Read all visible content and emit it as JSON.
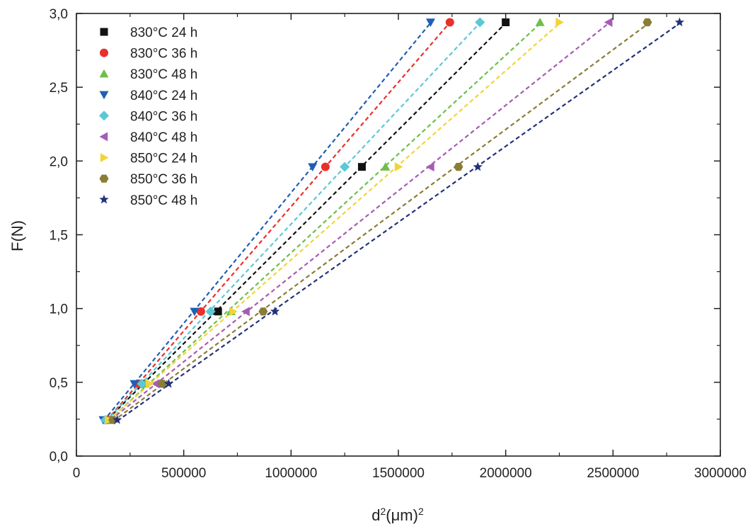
{
  "chart_data": {
    "type": "scatter",
    "title": "",
    "xlabel_base": "d",
    "xlabel_exp": "2",
    "xlabel_unit": "(μm)",
    "xlabel_unit_exp": "2",
    "ylabel": "F(N)",
    "xlim": [
      0,
      3000000
    ],
    "ylim": [
      0.0,
      3.0
    ],
    "x_ticks": [
      0,
      500000,
      1000000,
      1500000,
      2000000,
      2500000,
      3000000
    ],
    "x_tick_labels": [
      "0",
      "500000",
      "1000000",
      "1500000",
      "2000000",
      "2500000",
      "3000000"
    ],
    "y_ticks": [
      0.0,
      0.5,
      1.0,
      1.5,
      2.0,
      2.5,
      3.0
    ],
    "y_tick_labels": [
      "0,0",
      "0,5",
      "1,0",
      "1,5",
      "2,0",
      "2,5",
      "3,0"
    ],
    "grid": false,
    "legend_position": "top-left",
    "fit_lines": "dashed",
    "y_values": [
      0.245,
      0.49,
      0.98,
      1.96,
      2.94
    ],
    "series": [
      {
        "name": "830°C 24 h",
        "marker": "square",
        "color": "#111111",
        "x": [
          145000,
          300000,
          660000,
          1330000,
          2000000
        ],
        "y": [
          0.245,
          0.49,
          0.98,
          1.96,
          2.94
        ]
      },
      {
        "name": "830°C 36 h",
        "marker": "circle",
        "color": "#e8302c",
        "x": [
          140000,
          290000,
          580000,
          1160000,
          1740000
        ],
        "y": [
          0.245,
          0.49,
          0.98,
          1.96,
          2.94
        ]
      },
      {
        "name": "830°C 48 h",
        "marker": "triangle-up",
        "color": "#6dbf4b",
        "x": [
          155000,
          320000,
          720000,
          1440000,
          2160000
        ],
        "y": [
          0.245,
          0.49,
          0.98,
          1.96,
          2.94
        ]
      },
      {
        "name": "840°C 24 h",
        "marker": "triangle-down",
        "color": "#1f5fb5",
        "x": [
          125000,
          270000,
          550000,
          1100000,
          1650000
        ],
        "y": [
          0.245,
          0.49,
          0.98,
          1.96,
          2.94
        ]
      },
      {
        "name": "840°C 36 h",
        "marker": "diamond",
        "color": "#5bc8d6",
        "x": [
          135000,
          305000,
          625000,
          1250000,
          1880000
        ],
        "y": [
          0.245,
          0.49,
          0.98,
          1.96,
          2.94
        ]
      },
      {
        "name": "840°C 48 h",
        "marker": "triangle-left",
        "color": "#a65bb5",
        "x": [
          160000,
          370000,
          790000,
          1650000,
          2480000
        ],
        "y": [
          0.245,
          0.49,
          0.98,
          1.96,
          2.94
        ]
      },
      {
        "name": "850°C 24 h",
        "marker": "triangle-right",
        "color": "#f2d43a",
        "x": [
          150000,
          340000,
          730000,
          1500000,
          2250000
        ],
        "y": [
          0.245,
          0.49,
          0.98,
          1.96,
          2.94
        ]
      },
      {
        "name": "850°C 36 h",
        "marker": "hexagon",
        "color": "#8a7d35",
        "x": [
          170000,
          400000,
          870000,
          1780000,
          2660000
        ],
        "y": [
          0.245,
          0.49,
          0.98,
          1.96,
          2.94
        ]
      },
      {
        "name": "850°C 48 h",
        "marker": "star",
        "color": "#22327a",
        "x": [
          190000,
          430000,
          925000,
          1870000,
          2810000
        ],
        "y": [
          0.245,
          0.49,
          0.98,
          1.96,
          2.94
        ]
      }
    ]
  }
}
